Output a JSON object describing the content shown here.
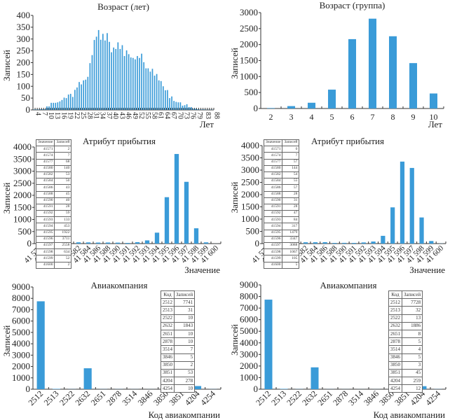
{
  "colors": {
    "bar": "#3a9bd8",
    "axis": "#333333",
    "text": "#222222"
  },
  "chart_data": [
    {
      "id": "age-years",
      "type": "bar",
      "title": "Возраст (лет)",
      "xlabel": "Лет",
      "ylabel": "Записей",
      "ylim": [
        0,
        400
      ],
      "yticks": [
        0,
        50,
        100,
        150,
        200,
        250,
        300,
        350,
        400
      ],
      "xtick_labels": [
        "4",
        "7",
        "10",
        "13",
        "16",
        "19",
        "22",
        "25",
        "28",
        "31",
        "34",
        "37",
        "40",
        "43",
        "46",
        "49",
        "52",
        "55",
        "58",
        "61",
        "64",
        "67",
        "70",
        "73",
        "76",
        "79",
        "83",
        "88"
      ],
      "categories": [
        4,
        5,
        6,
        7,
        8,
        9,
        10,
        11,
        12,
        13,
        14,
        15,
        16,
        17,
        18,
        19,
        20,
        21,
        22,
        23,
        24,
        25,
        26,
        27,
        28,
        29,
        30,
        31,
        32,
        33,
        34,
        35,
        36,
        37,
        38,
        39,
        40,
        41,
        42,
        43,
        44,
        45,
        46,
        47,
        48,
        49,
        50,
        51,
        52,
        53,
        54,
        55,
        56,
        57,
        58,
        59,
        60,
        61,
        62,
        63,
        64,
        65,
        66,
        67,
        68,
        69,
        70,
        71,
        72,
        73,
        74,
        75,
        76,
        77,
        78,
        79,
        80,
        81,
        82,
        83,
        84,
        85,
        86,
        88
      ],
      "values": [
        2,
        2,
        2,
        3,
        3,
        3,
        15,
        15,
        30,
        30,
        30,
        32,
        36,
        42,
        52,
        50,
        65,
        68,
        55,
        85,
        95,
        118,
        108,
        125,
        128,
        140,
        198,
        232,
        296,
        310,
        338,
        297,
        322,
        294,
        325,
        288,
        244,
        264,
        258,
        286,
        258,
        274,
        228,
        252,
        236,
        222,
        220,
        214,
        228,
        220,
        238,
        202,
        176,
        176,
        162,
        174,
        145,
        152,
        125,
        122,
        100,
        83,
        84,
        50,
        57,
        38,
        34,
        32,
        32,
        18,
        20,
        24,
        12,
        12,
        5,
        5,
        3,
        2,
        2,
        2,
        1,
        1,
        1,
        1
      ]
    },
    {
      "id": "age-group",
      "type": "bar",
      "title": "Возраст (группа)",
      "xlabel": "Лет",
      "ylabel": "Записей",
      "ylim": [
        0,
        3000
      ],
      "yticks": [
        0,
        500,
        1000,
        1500,
        2000,
        2500,
        3000
      ],
      "categories": [
        "2",
        "3",
        "4",
        "5",
        "6",
        "7",
        "8",
        "9",
        "10"
      ],
      "values": [
        15,
        75,
        180,
        590,
        2170,
        2810,
        2260,
        1420,
        470
      ]
    },
    {
      "id": "arrival-left",
      "type": "bar",
      "title": "Атрибут прибытия",
      "xlabel": "Значение",
      "ylabel": "Записей",
      "ylim": [
        0,
        4000
      ],
      "yticks": [
        0,
        500,
        1000,
        1500,
        2000,
        2500,
        3000,
        3500,
        4000
      ],
      "categories": [
        "41571",
        "41574",
        "41577",
        "41580",
        "41582",
        "41584",
        "41586",
        "41588",
        "41590",
        "41591",
        "41592",
        "41593",
        "41594",
        "41595",
        "41596",
        "41597",
        "41598",
        "41599",
        "41600"
      ],
      "xtick_labels": [
        "41 571",
        "41 574",
        "41 577",
        "41 580",
        "41 582",
        "41 584",
        "41 586",
        "41 588",
        "41 590",
        "41 591",
        "41 592",
        "41 593",
        "41 594",
        "41 595",
        "41 596",
        "41 597",
        "41 598",
        "41 599",
        "41 600"
      ],
      "values": [
        2,
        7,
        68,
        140,
        53,
        50,
        43,
        45,
        40,
        28,
        59,
        133,
        453,
        1922,
        3711,
        2558,
        634,
        52,
        2
      ],
      "table": {
        "headers": [
          "Значение",
          "Записей"
        ],
        "rows": [
          [
            "41571",
            "2"
          ],
          [
            "41574",
            "7"
          ],
          [
            "41577",
            "68"
          ],
          [
            "41580",
            "140"
          ],
          [
            "41582",
            "53"
          ],
          [
            "41584",
            "50"
          ],
          [
            "41586",
            "43"
          ],
          [
            "41588",
            "45"
          ],
          [
            "41590",
            "40"
          ],
          [
            "41591",
            "28"
          ],
          [
            "41592",
            "59"
          ],
          [
            "41593",
            "133"
          ],
          [
            "41594",
            "453"
          ],
          [
            "41595",
            "1922"
          ],
          [
            "41596",
            "3711"
          ],
          [
            "41597",
            "2558"
          ],
          [
            "41598",
            "634"
          ],
          [
            "41599",
            "52"
          ],
          [
            "41600",
            "2"
          ]
        ]
      }
    },
    {
      "id": "arrival-right",
      "type": "bar",
      "title": "Атрибут прибытия",
      "xlabel": "Значение",
      "ylabel": "Записей",
      "ylim": [
        0,
        4000
      ],
      "yticks": [
        0,
        500,
        1000,
        1500,
        2000,
        2500,
        3000,
        3500,
        4000
      ],
      "categories": [
        "41571",
        "41574",
        "41577",
        "41580",
        "41582",
        "41584",
        "41586",
        "41588",
        "41590",
        "41591",
        "41592",
        "41593",
        "41594",
        "41595",
        "41596",
        "41597",
        "41598",
        "41599",
        "41600"
      ],
      "xtick_labels": [
        "41 571",
        "41 574",
        "41 577",
        "41 580",
        "41 582",
        "41 584",
        "41 586",
        "41 588",
        "41 590",
        "41 591",
        "41 592",
        "41 593",
        "41 594",
        "41 595",
        "41 596",
        "41 597",
        "41 598",
        "41 599",
        "41 600"
      ],
      "values": [
        0,
        7,
        57,
        144,
        54,
        55,
        57,
        28,
        31,
        28,
        47,
        84,
        317,
        1479,
        3347,
        3088,
        1067,
        105,
        5
      ],
      "table": {
        "headers": [
          "Значение",
          "Записей"
        ],
        "rows": [
          [
            "41571",
            "0"
          ],
          [
            "41574",
            "7"
          ],
          [
            "41577",
            "57"
          ],
          [
            "41580",
            "144"
          ],
          [
            "41582",
            "54"
          ],
          [
            "41584",
            "55"
          ],
          [
            "41586",
            "57"
          ],
          [
            "41588",
            "28"
          ],
          [
            "41590",
            "31"
          ],
          [
            "41591",
            "28"
          ],
          [
            "41592",
            "47"
          ],
          [
            "41593",
            "84"
          ],
          [
            "41594",
            "317"
          ],
          [
            "41595",
            "1479"
          ],
          [
            "41596",
            "3347"
          ],
          [
            "41597",
            "3088"
          ],
          [
            "41598",
            "1067"
          ],
          [
            "41599",
            "105"
          ],
          [
            "41600",
            "5"
          ]
        ]
      }
    },
    {
      "id": "airline-left",
      "type": "bar",
      "title": "Авиакомпания",
      "xlabel": "Код авиакомпании",
      "ylabel": "Записей",
      "ylim": [
        0,
        9000
      ],
      "yticks": [
        0,
        1000,
        2000,
        3000,
        4000,
        5000,
        6000,
        7000,
        8000,
        9000
      ],
      "categories": [
        "2512",
        "2513",
        "2522",
        "2632",
        "2651",
        "2878",
        "3514",
        "3846",
        "3850",
        "3851",
        "4204",
        "4254"
      ],
      "values": [
        7741,
        31,
        10,
        1843,
        10,
        10,
        7,
        5,
        2,
        53,
        278,
        10
      ],
      "table": {
        "headers": [
          "Код",
          "Записей"
        ],
        "rows": [
          [
            "2512",
            "7741"
          ],
          [
            "2513",
            "31"
          ],
          [
            "2522",
            "10"
          ],
          [
            "2632",
            "1843"
          ],
          [
            "2651",
            "10"
          ],
          [
            "2878",
            "10"
          ],
          [
            "3514",
            "7"
          ],
          [
            "3846",
            "5"
          ],
          [
            "3850",
            "2"
          ],
          [
            "3851",
            "53"
          ],
          [
            "4204",
            "278"
          ],
          [
            "4254",
            "10"
          ]
        ]
      }
    },
    {
      "id": "airline-right",
      "type": "bar",
      "title": "Авиакомпания",
      "xlabel": "Код авиакомпании",
      "ylabel": "Записей",
      "ylim": [
        0,
        9000
      ],
      "yticks": [
        0,
        1000,
        2000,
        3000,
        4000,
        5000,
        6000,
        7000,
        8000,
        9000
      ],
      "categories": [
        "2512",
        "2513",
        "2522",
        "2632",
        "2651",
        "2878",
        "3514",
        "3846",
        "3850",
        "3851",
        "4204",
        "4254"
      ],
      "values": [
        7728,
        32,
        13,
        1886,
        8,
        5,
        4,
        5,
        3,
        45,
        259,
        12
      ],
      "table": {
        "headers": [
          "Код",
          "Записей"
        ],
        "rows": [
          [
            "2512",
            "7728"
          ],
          [
            "2513",
            "32"
          ],
          [
            "2522",
            "13"
          ],
          [
            "2632",
            "1886"
          ],
          [
            "2651",
            "8"
          ],
          [
            "2878",
            "5"
          ],
          [
            "3514",
            "4"
          ],
          [
            "3846",
            "5"
          ],
          [
            "3850",
            "3"
          ],
          [
            "3851",
            "45"
          ],
          [
            "4204",
            "259"
          ],
          [
            "4254",
            "12"
          ]
        ]
      }
    }
  ]
}
